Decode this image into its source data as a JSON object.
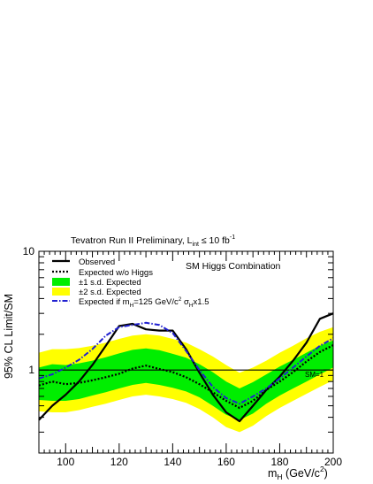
{
  "chart_data": {
    "type": "line",
    "title_parts": {
      "main": "Tevatron Run II Preliminary, L",
      "sub": "int",
      "rel": " ≤ 10 fb",
      "sup": "-1"
    },
    "annotation": "SM Higgs Combination",
    "ylabel": "95% CL Limit/SM",
    "xlabel_parts": {
      "m": "m",
      "sub": "H",
      "unit": " (GeV/c",
      "sup": "2",
      "close": ")"
    },
    "xlim": [
      90,
      200
    ],
    "ylim": [
      0.2,
      10
    ],
    "yscale": "log",
    "xticks": [
      100,
      120,
      140,
      160,
      180,
      200
    ],
    "yticks": [
      1,
      10
    ],
    "sm_line": {
      "y": 1,
      "label": "SM=1"
    },
    "x": [
      90,
      95,
      100,
      105,
      110,
      115,
      120,
      125,
      130,
      135,
      140,
      145,
      150,
      155,
      160,
      165,
      170,
      175,
      180,
      185,
      190,
      195,
      200
    ],
    "band_2sd": {
      "lower": [
        0.45,
        0.44,
        0.44,
        0.46,
        0.49,
        0.52,
        0.56,
        0.6,
        0.62,
        0.6,
        0.57,
        0.53,
        0.47,
        0.4,
        0.33,
        0.3,
        0.34,
        0.41,
        0.48,
        0.55,
        0.63,
        0.72,
        0.82
      ],
      "upper": [
        1.4,
        1.5,
        1.5,
        1.53,
        1.6,
        1.7,
        1.83,
        1.95,
        2.0,
        1.95,
        1.83,
        1.7,
        1.5,
        1.3,
        1.1,
        0.95,
        1.05,
        1.2,
        1.4,
        1.6,
        1.85,
        2.1,
        2.3
      ]
    },
    "band_1sd": {
      "lower": [
        0.56,
        0.55,
        0.55,
        0.57,
        0.61,
        0.65,
        0.7,
        0.75,
        0.78,
        0.75,
        0.71,
        0.66,
        0.59,
        0.5,
        0.42,
        0.38,
        0.43,
        0.52,
        0.61,
        0.7,
        0.8,
        0.92,
        1.05
      ],
      "upper": [
        1.05,
        1.12,
        1.1,
        1.14,
        1.2,
        1.28,
        1.38,
        1.48,
        1.52,
        1.47,
        1.37,
        1.27,
        1.12,
        0.96,
        0.8,
        0.7,
        0.79,
        0.92,
        1.07,
        1.22,
        1.4,
        1.6,
        1.78
      ]
    },
    "series": [
      {
        "name": "Observed",
        "values": [
          0.38,
          0.5,
          0.62,
          0.8,
          1.1,
          1.6,
          2.35,
          2.45,
          2.2,
          2.15,
          2.15,
          1.5,
          0.95,
          0.62,
          0.44,
          0.37,
          0.5,
          0.68,
          0.88,
          1.2,
          1.7,
          2.7,
          3.0
        ],
        "color": "#000000",
        "dash": "solid"
      },
      {
        "name": "Expected w/o Higgs",
        "values": [
          0.74,
          0.8,
          0.76,
          0.78,
          0.82,
          0.87,
          0.93,
          1.03,
          1.09,
          1.02,
          0.96,
          0.87,
          0.76,
          0.65,
          0.55,
          0.48,
          0.55,
          0.68,
          0.8,
          0.96,
          1.18,
          1.42,
          1.62
        ],
        "color": "#000000",
        "dash": "dotted"
      },
      {
        "name": "Expected if m",
        "name_sub": "H",
        "name_rest": "=125 GeV/c",
        "name_sup": "2",
        "name_tail": " σ",
        "name_tail_sub": "H",
        "name_tail_rest": "x1.5",
        "values": [
          0.85,
          0.92,
          1.05,
          1.22,
          1.5,
          1.95,
          2.3,
          2.4,
          2.5,
          2.4,
          2.05,
          1.45,
          1.0,
          0.72,
          0.58,
          0.52,
          0.6,
          0.7,
          0.85,
          1.05,
          1.3,
          1.6,
          1.85
        ],
        "color": "#2020d0",
        "dash": "dashdot"
      }
    ],
    "legend": {
      "observed": "Observed",
      "expected": "Expected w/o Higgs",
      "one_sd": "±1 s.d. Expected",
      "two_sd": "±2 s.d. Expected"
    },
    "colors": {
      "band_1sd": "#00ee00",
      "band_2sd": "#ffff00",
      "observed": "#000000",
      "signal": "#2020d0"
    }
  }
}
